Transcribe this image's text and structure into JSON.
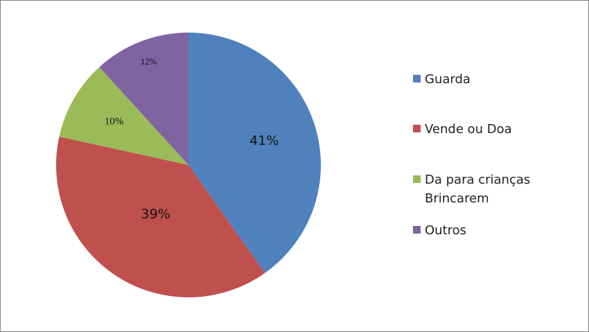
{
  "chart_data": {
    "type": "pie",
    "categories": [
      "Guarda",
      "Vende ou Doa",
      "Da para crianças Brincarem",
      "Outros"
    ],
    "values": [
      41,
      39,
      10,
      12
    ],
    "value_labels": [
      "41%",
      "39%",
      "10%",
      "12%"
    ],
    "colors": [
      "#4f81bd",
      "#c0504d",
      "#9bbb59",
      "#8064a2"
    ],
    "legend": "right"
  }
}
